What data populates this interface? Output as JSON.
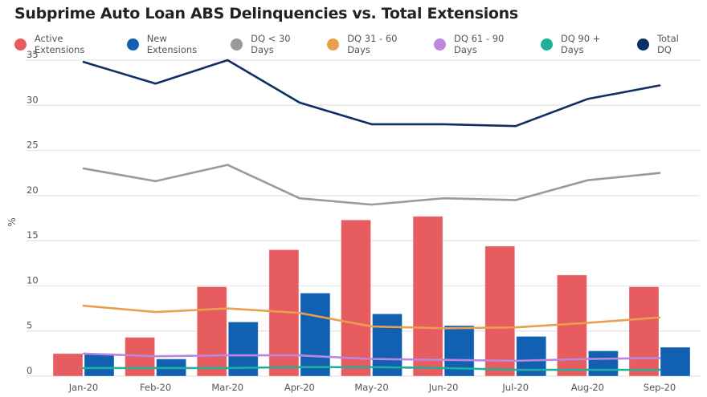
{
  "chart_data": {
    "type": "bar",
    "title": "Subprime Auto Loan ABS Delinquencies vs. Total Extensions",
    "xlabel": "",
    "ylabel": "%",
    "ylim": [
      0,
      35
    ],
    "yticks": [
      0,
      5,
      10,
      15,
      20,
      25,
      30,
      35
    ],
    "grid": true,
    "legend_position": "top-left",
    "categories": [
      "Jan-20",
      "Feb-20",
      "Mar-20",
      "Apr-20",
      "May-20",
      "Jun-20",
      "Jul-20",
      "Aug-20",
      "Sep-20"
    ],
    "series": [
      {
        "name": "Active Extensions",
        "kind": "bar",
        "color": "#E65C5F",
        "values": [
          2.5,
          4.3,
          9.9,
          14.0,
          17.3,
          17.7,
          14.4,
          11.2,
          9.9
        ]
      },
      {
        "name": "New Extensions",
        "kind": "bar",
        "color": "#1160B2",
        "values": [
          2.5,
          1.9,
          6.0,
          9.2,
          6.9,
          5.6,
          4.4,
          2.8,
          3.2
        ]
      },
      {
        "name": "DQ < 30 Days",
        "kind": "line",
        "color": "#9A9A9A",
        "values": [
          23.0,
          21.6,
          23.4,
          19.7,
          19.0,
          19.7,
          19.5,
          21.7,
          22.5
        ]
      },
      {
        "name": "DQ 31 - 60 Days",
        "kind": "line",
        "color": "#E8A04E",
        "values": [
          7.8,
          7.1,
          7.5,
          7.0,
          5.5,
          5.3,
          5.4,
          5.9,
          6.5
        ]
      },
      {
        "name": "DQ 61 - 90 Days",
        "kind": "line",
        "color": "#BD86DE",
        "values": [
          2.5,
          2.2,
          2.3,
          2.3,
          1.9,
          1.8,
          1.7,
          1.9,
          2.0
        ]
      },
      {
        "name": "DQ 90 + Days",
        "kind": "line",
        "color": "#1FB09A",
        "values": [
          0.9,
          0.9,
          0.9,
          1.0,
          1.0,
          0.9,
          0.7,
          0.7,
          0.7
        ]
      },
      {
        "name": "Total DQ",
        "kind": "line",
        "color": "#0D2F63",
        "values": [
          34.8,
          32.4,
          35.0,
          30.3,
          27.9,
          27.9,
          27.7,
          30.7,
          32.2
        ]
      }
    ]
  }
}
